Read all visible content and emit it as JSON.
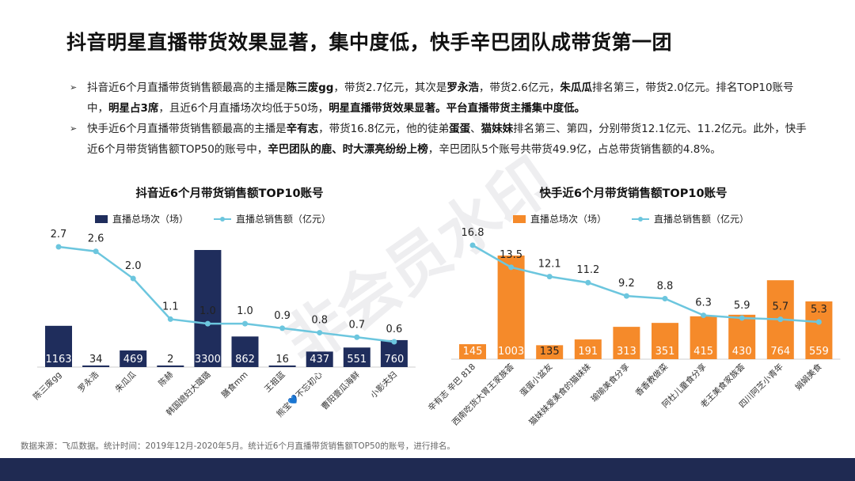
{
  "title": "抖音明星直播带货效果显著，集中度低，快手辛巴团队成带货第一团",
  "bullets": [
    {
      "parts": [
        {
          "t": "抖音近6个月直播带货销售额最高的主播是",
          "b": false
        },
        {
          "t": "陈三废gg",
          "b": true
        },
        {
          "t": "，带货2.7亿元，其次是",
          "b": false
        },
        {
          "t": "罗永浩",
          "b": true
        },
        {
          "t": "，带货2.6亿元，",
          "b": false
        },
        {
          "t": "朱瓜瓜",
          "b": true
        },
        {
          "t": "排名第三，带货2.0亿元。排名TOP10账号中，",
          "b": false
        },
        {
          "t": "明星占3席",
          "b": true
        },
        {
          "t": "，且近6个月直播场次均低于50场，",
          "b": false
        },
        {
          "t": "明星直播带货效果显著。平台直播带货主播集中度低。",
          "b": true
        }
      ]
    },
    {
      "parts": [
        {
          "t": "快手近6个月直播带货销售额最高的主播是",
          "b": false
        },
        {
          "t": "辛有志",
          "b": true
        },
        {
          "t": "，带货16.8亿元，他的徒弟",
          "b": false
        },
        {
          "t": "蛋蛋",
          "b": true
        },
        {
          "t": "、",
          "b": false
        },
        {
          "t": "猫妹妹",
          "b": true
        },
        {
          "t": "排名第三、第四，分别带货12.1亿元、11.2亿元。此外，快手近6个月带货销售额TOP50的账号中，",
          "b": false
        },
        {
          "t": "辛巴团队的鹿、时大漂亮纷纷上榜",
          "b": true
        },
        {
          "t": "，辛巴团队5个账号共带货49.9亿，占总带货销售额的4.8%。",
          "b": false
        }
      ]
    }
  ],
  "footer": "数据来源：飞瓜数据。统计时间：2019年12月-2020年5月。统计近6个月直播带货销售额TOP50的账号，进行排名。",
  "watermark_text": "非会员水印",
  "chart_data": [
    {
      "type": "bar",
      "title": "抖音近6个月带货销售额TOP10账号",
      "categories": [
        "陈三废gg",
        "罗永浩",
        "朱瓜瓜",
        "陈赫",
        "韩国媳妇大璐璐",
        "膳食mm",
        "王祖蓝",
        "熊宝💙不忘初心",
        "曹阳壹瓜海鲜",
        "小影夫妇"
      ],
      "series": [
        {
          "name": "直播总场次（场）",
          "type": "bar",
          "color": "#1f2d5c",
          "values": [
            1163,
            34,
            469,
            2,
            3300,
            862,
            16,
            437,
            551,
            760
          ]
        },
        {
          "name": "直播总销售额（亿元）",
          "type": "line",
          "color": "#6cc6de",
          "values": [
            2.7,
            2.6,
            2.0,
            1.1,
            1.0,
            1.0,
            0.9,
            0.8,
            0.7,
            0.6
          ]
        }
      ],
      "legend": "top"
    },
    {
      "type": "bar",
      "title": "快手近6个月带货销售额TOP10账号",
      "categories": [
        "辛有志 辛巴 818",
        "西南吃货大胃王家族荟",
        "蛋蛋小盆友",
        "猫妹妹爱美食的猫妹妹",
        "瑜瑜美食分享",
        "香香教做菜",
        "阿杜儿童食分享",
        "老王美食家族荟",
        "四川阿芝小青年",
        "娟娟美食"
      ],
      "series": [
        {
          "name": "直播总场次（场）",
          "type": "bar",
          "color": "#f58a2a",
          "values": [
            145,
            1003,
            135,
            191,
            313,
            351,
            415,
            430,
            764,
            559
          ]
        },
        {
          "name": "直播总销售额（亿元）",
          "type": "line",
          "color": "#6cc6de",
          "values": [
            16.8,
            13.5,
            12.1,
            11.2,
            9.2,
            8.8,
            6.3,
            5.9,
            5.7,
            5.3
          ]
        }
      ],
      "legend": "top"
    }
  ]
}
